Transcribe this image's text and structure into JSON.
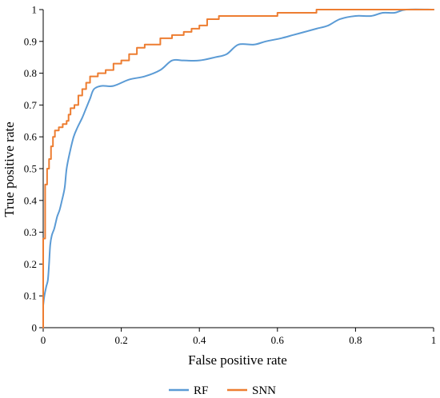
{
  "chart_data": {
    "type": "line",
    "xlabel": "False positive rate",
    "ylabel": "True positive rate",
    "xlim": [
      0,
      1
    ],
    "ylim": [
      0,
      1
    ],
    "x_ticks": [
      "0",
      "0.2",
      "0.4",
      "0.6",
      "0.8",
      "1"
    ],
    "y_ticks": [
      "0",
      "0.1",
      "0.2",
      "0.3",
      "0.4",
      "0.5",
      "0.6",
      "0.7",
      "0.8",
      "0.9",
      "1"
    ],
    "grid": false,
    "legend_position": "bottom",
    "series": [
      {
        "name": "RF",
        "color": "#5B9BD5",
        "style": "smooth",
        "points": [
          [
            0,
            0.07
          ],
          [
            0.003,
            0.1
          ],
          [
            0.008,
            0.13
          ],
          [
            0.012,
            0.15
          ],
          [
            0.015,
            0.2
          ],
          [
            0.018,
            0.26
          ],
          [
            0.022,
            0.29
          ],
          [
            0.028,
            0.31
          ],
          [
            0.032,
            0.33
          ],
          [
            0.036,
            0.35
          ],
          [
            0.042,
            0.37
          ],
          [
            0.048,
            0.4
          ],
          [
            0.055,
            0.44
          ],
          [
            0.06,
            0.5
          ],
          [
            0.068,
            0.55
          ],
          [
            0.078,
            0.6
          ],
          [
            0.088,
            0.63
          ],
          [
            0.1,
            0.66
          ],
          [
            0.11,
            0.69
          ],
          [
            0.12,
            0.72
          ],
          [
            0.13,
            0.75
          ],
          [
            0.15,
            0.76
          ],
          [
            0.18,
            0.76
          ],
          [
            0.22,
            0.78
          ],
          [
            0.26,
            0.79
          ],
          [
            0.3,
            0.81
          ],
          [
            0.33,
            0.84
          ],
          [
            0.36,
            0.84
          ],
          [
            0.4,
            0.84
          ],
          [
            0.44,
            0.85
          ],
          [
            0.47,
            0.86
          ],
          [
            0.5,
            0.89
          ],
          [
            0.54,
            0.89
          ],
          [
            0.57,
            0.9
          ],
          [
            0.61,
            0.91
          ],
          [
            0.64,
            0.92
          ],
          [
            0.67,
            0.93
          ],
          [
            0.7,
            0.94
          ],
          [
            0.73,
            0.95
          ],
          [
            0.76,
            0.97
          ],
          [
            0.8,
            0.98
          ],
          [
            0.84,
            0.98
          ],
          [
            0.87,
            0.99
          ],
          [
            0.9,
            0.99
          ],
          [
            0.93,
            1.0
          ],
          [
            1.0,
            1.0
          ]
        ]
      },
      {
        "name": "SNN",
        "color": "#ED7D31",
        "style": "step",
        "points": [
          [
            0,
            0
          ],
          [
            0,
            0.28
          ],
          [
            0.005,
            0.45
          ],
          [
            0.01,
            0.5
          ],
          [
            0.015,
            0.53
          ],
          [
            0.02,
            0.57
          ],
          [
            0.025,
            0.6
          ],
          [
            0.03,
            0.62
          ],
          [
            0.04,
            0.63
          ],
          [
            0.05,
            0.64
          ],
          [
            0.06,
            0.65
          ],
          [
            0.065,
            0.67
          ],
          [
            0.07,
            0.69
          ],
          [
            0.08,
            0.7
          ],
          [
            0.09,
            0.73
          ],
          [
            0.1,
            0.75
          ],
          [
            0.11,
            0.77
          ],
          [
            0.12,
            0.79
          ],
          [
            0.14,
            0.8
          ],
          [
            0.16,
            0.81
          ],
          [
            0.18,
            0.83
          ],
          [
            0.2,
            0.84
          ],
          [
            0.22,
            0.86
          ],
          [
            0.24,
            0.88
          ],
          [
            0.26,
            0.89
          ],
          [
            0.3,
            0.91
          ],
          [
            0.33,
            0.92
          ],
          [
            0.36,
            0.93
          ],
          [
            0.38,
            0.94
          ],
          [
            0.4,
            0.95
          ],
          [
            0.42,
            0.97
          ],
          [
            0.45,
            0.98
          ],
          [
            0.5,
            0.98
          ],
          [
            0.55,
            0.98
          ],
          [
            0.6,
            0.99
          ],
          [
            0.65,
            0.99
          ],
          [
            0.7,
            1.0
          ],
          [
            0.8,
            1.0
          ],
          [
            1.0,
            1.0
          ]
        ]
      }
    ]
  }
}
